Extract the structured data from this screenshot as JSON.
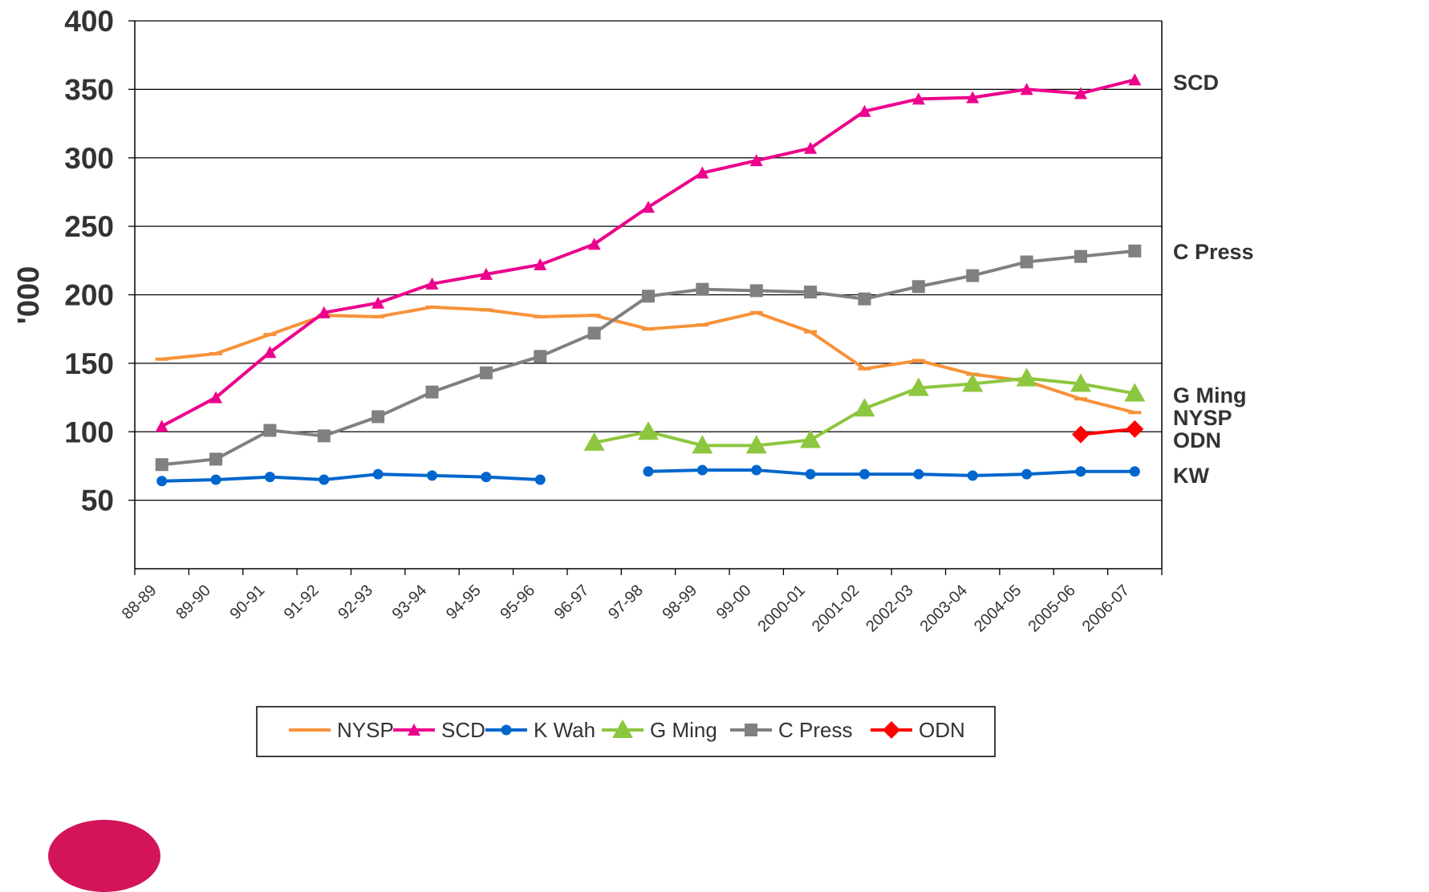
{
  "chart_data": {
    "type": "line",
    "ylabel": "'000",
    "ylim": [
      0,
      400
    ],
    "yticks": [
      50,
      100,
      150,
      200,
      250,
      300,
      350,
      400
    ],
    "categories": [
      "88-89",
      "89-90",
      "90-91",
      "91-92",
      "92-93",
      "93-94",
      "94-95",
      "95-96",
      "96-97",
      "97-98",
      "98-99",
      "99-00",
      "2000-01",
      "2001-02",
      "2002-03",
      "2003-04",
      "2004-05",
      "2005-06",
      "2006-07"
    ],
    "grid": true,
    "legend_position": "bottom",
    "series": [
      {
        "name": "NYSP",
        "end_label": "NYSP",
        "color": "#f7923a",
        "marker": "dash",
        "values": [
          153,
          157,
          171,
          185,
          184,
          191,
          189,
          184,
          185,
          175,
          178,
          187,
          173,
          146,
          152,
          142,
          137,
          124,
          114
        ]
      },
      {
        "name": "SCD",
        "end_label": "SCD",
        "color": "#ec008c",
        "marker": "triangle",
        "values": [
          104,
          125,
          158,
          187,
          194,
          208,
          215,
          222,
          237,
          264,
          289,
          298,
          307,
          334,
          343,
          344,
          350,
          347,
          357
        ]
      },
      {
        "name": "K Wah",
        "end_label": "KW",
        "color": "#0066cc",
        "marker": "circle",
        "values": [
          64,
          65,
          67,
          65,
          69,
          68,
          67,
          65,
          null,
          71,
          72,
          72,
          69,
          69,
          69,
          68,
          69,
          71,
          71
        ]
      },
      {
        "name": "G Ming",
        "end_label": "G Ming",
        "color": "#8dc63f",
        "marker": "triangle-large",
        "values": [
          null,
          null,
          null,
          null,
          null,
          null,
          null,
          null,
          92,
          100,
          90,
          90,
          94,
          117,
          132,
          135,
          139,
          135,
          128
        ]
      },
      {
        "name": "C Press",
        "end_label": "C Press",
        "color": "#808080",
        "marker": "square",
        "values": [
          76,
          80,
          101,
          97,
          111,
          129,
          143,
          155,
          172,
          199,
          204,
          203,
          202,
          197,
          206,
          214,
          224,
          228,
          232
        ]
      },
      {
        "name": "ODN",
        "end_label": "ODN",
        "color": "#ff0000",
        "marker": "diamond",
        "values": [
          null,
          null,
          null,
          null,
          null,
          null,
          null,
          null,
          null,
          null,
          null,
          null,
          null,
          null,
          null,
          null,
          null,
          98,
          102
        ]
      }
    ]
  },
  "logo": {
    "color": "#d3145a"
  }
}
